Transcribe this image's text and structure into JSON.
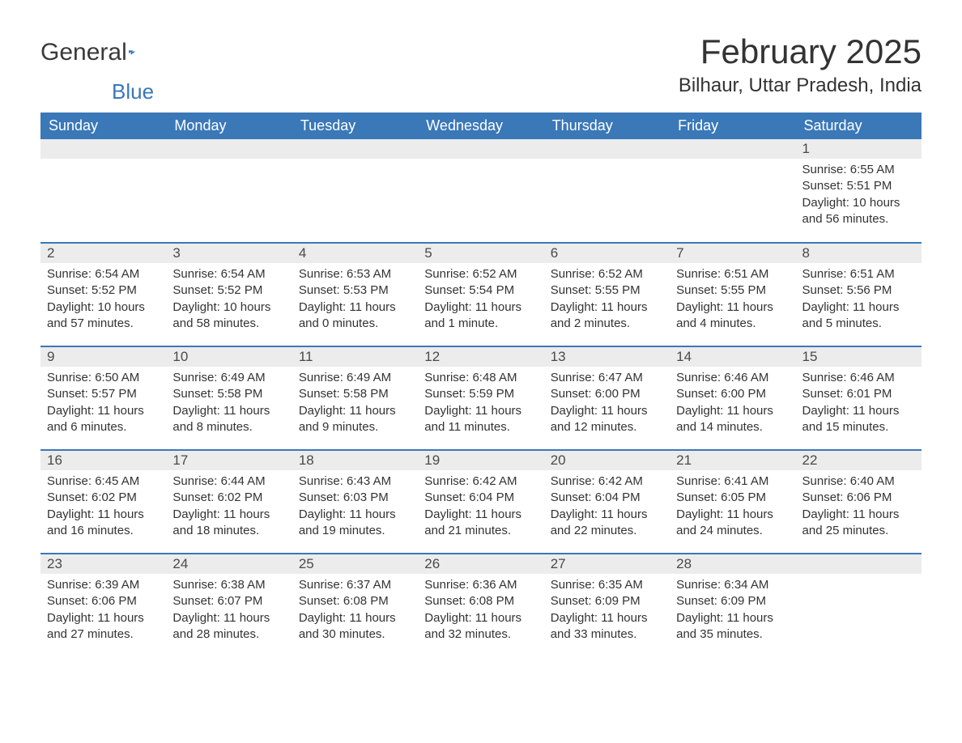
{
  "logo": {
    "text_general": "General",
    "text_blue": "Blue"
  },
  "title": "February 2025",
  "location": "Bilhaur, Uttar Pradesh, India",
  "colors": {
    "header_bg": "#3a78b8",
    "header_text": "#ffffff",
    "daynum_bg": "#ececec",
    "border": "#3a78b8",
    "body_text": "#333333",
    "logo_blue": "#3a78b8"
  },
  "weekdays": [
    "Sunday",
    "Monday",
    "Tuesday",
    "Wednesday",
    "Thursday",
    "Friday",
    "Saturday"
  ],
  "weeks": [
    [
      {
        "empty": true
      },
      {
        "empty": true
      },
      {
        "empty": true
      },
      {
        "empty": true
      },
      {
        "empty": true
      },
      {
        "empty": true
      },
      {
        "day": "1",
        "sunrise": "Sunrise: 6:55 AM",
        "sunset": "Sunset: 5:51 PM",
        "daylight": "Daylight: 10 hours and 56 minutes."
      }
    ],
    [
      {
        "day": "2",
        "sunrise": "Sunrise: 6:54 AM",
        "sunset": "Sunset: 5:52 PM",
        "daylight": "Daylight: 10 hours and 57 minutes."
      },
      {
        "day": "3",
        "sunrise": "Sunrise: 6:54 AM",
        "sunset": "Sunset: 5:52 PM",
        "daylight": "Daylight: 10 hours and 58 minutes."
      },
      {
        "day": "4",
        "sunrise": "Sunrise: 6:53 AM",
        "sunset": "Sunset: 5:53 PM",
        "daylight": "Daylight: 11 hours and 0 minutes."
      },
      {
        "day": "5",
        "sunrise": "Sunrise: 6:52 AM",
        "sunset": "Sunset: 5:54 PM",
        "daylight": "Daylight: 11 hours and 1 minute."
      },
      {
        "day": "6",
        "sunrise": "Sunrise: 6:52 AM",
        "sunset": "Sunset: 5:55 PM",
        "daylight": "Daylight: 11 hours and 2 minutes."
      },
      {
        "day": "7",
        "sunrise": "Sunrise: 6:51 AM",
        "sunset": "Sunset: 5:55 PM",
        "daylight": "Daylight: 11 hours and 4 minutes."
      },
      {
        "day": "8",
        "sunrise": "Sunrise: 6:51 AM",
        "sunset": "Sunset: 5:56 PM",
        "daylight": "Daylight: 11 hours and 5 minutes."
      }
    ],
    [
      {
        "day": "9",
        "sunrise": "Sunrise: 6:50 AM",
        "sunset": "Sunset: 5:57 PM",
        "daylight": "Daylight: 11 hours and 6 minutes."
      },
      {
        "day": "10",
        "sunrise": "Sunrise: 6:49 AM",
        "sunset": "Sunset: 5:58 PM",
        "daylight": "Daylight: 11 hours and 8 minutes."
      },
      {
        "day": "11",
        "sunrise": "Sunrise: 6:49 AM",
        "sunset": "Sunset: 5:58 PM",
        "daylight": "Daylight: 11 hours and 9 minutes."
      },
      {
        "day": "12",
        "sunrise": "Sunrise: 6:48 AM",
        "sunset": "Sunset: 5:59 PM",
        "daylight": "Daylight: 11 hours and 11 minutes."
      },
      {
        "day": "13",
        "sunrise": "Sunrise: 6:47 AM",
        "sunset": "Sunset: 6:00 PM",
        "daylight": "Daylight: 11 hours and 12 minutes."
      },
      {
        "day": "14",
        "sunrise": "Sunrise: 6:46 AM",
        "sunset": "Sunset: 6:00 PM",
        "daylight": "Daylight: 11 hours and 14 minutes."
      },
      {
        "day": "15",
        "sunrise": "Sunrise: 6:46 AM",
        "sunset": "Sunset: 6:01 PM",
        "daylight": "Daylight: 11 hours and 15 minutes."
      }
    ],
    [
      {
        "day": "16",
        "sunrise": "Sunrise: 6:45 AM",
        "sunset": "Sunset: 6:02 PM",
        "daylight": "Daylight: 11 hours and 16 minutes."
      },
      {
        "day": "17",
        "sunrise": "Sunrise: 6:44 AM",
        "sunset": "Sunset: 6:02 PM",
        "daylight": "Daylight: 11 hours and 18 minutes."
      },
      {
        "day": "18",
        "sunrise": "Sunrise: 6:43 AM",
        "sunset": "Sunset: 6:03 PM",
        "daylight": "Daylight: 11 hours and 19 minutes."
      },
      {
        "day": "19",
        "sunrise": "Sunrise: 6:42 AM",
        "sunset": "Sunset: 6:04 PM",
        "daylight": "Daylight: 11 hours and 21 minutes."
      },
      {
        "day": "20",
        "sunrise": "Sunrise: 6:42 AM",
        "sunset": "Sunset: 6:04 PM",
        "daylight": "Daylight: 11 hours and 22 minutes."
      },
      {
        "day": "21",
        "sunrise": "Sunrise: 6:41 AM",
        "sunset": "Sunset: 6:05 PM",
        "daylight": "Daylight: 11 hours and 24 minutes."
      },
      {
        "day": "22",
        "sunrise": "Sunrise: 6:40 AM",
        "sunset": "Sunset: 6:06 PM",
        "daylight": "Daylight: 11 hours and 25 minutes."
      }
    ],
    [
      {
        "day": "23",
        "sunrise": "Sunrise: 6:39 AM",
        "sunset": "Sunset: 6:06 PM",
        "daylight": "Daylight: 11 hours and 27 minutes."
      },
      {
        "day": "24",
        "sunrise": "Sunrise: 6:38 AM",
        "sunset": "Sunset: 6:07 PM",
        "daylight": "Daylight: 11 hours and 28 minutes."
      },
      {
        "day": "25",
        "sunrise": "Sunrise: 6:37 AM",
        "sunset": "Sunset: 6:08 PM",
        "daylight": "Daylight: 11 hours and 30 minutes."
      },
      {
        "day": "26",
        "sunrise": "Sunrise: 6:36 AM",
        "sunset": "Sunset: 6:08 PM",
        "daylight": "Daylight: 11 hours and 32 minutes."
      },
      {
        "day": "27",
        "sunrise": "Sunrise: 6:35 AM",
        "sunset": "Sunset: 6:09 PM",
        "daylight": "Daylight: 11 hours and 33 minutes."
      },
      {
        "day": "28",
        "sunrise": "Sunrise: 6:34 AM",
        "sunset": "Sunset: 6:09 PM",
        "daylight": "Daylight: 11 hours and 35 minutes."
      },
      {
        "empty": true
      }
    ]
  ]
}
